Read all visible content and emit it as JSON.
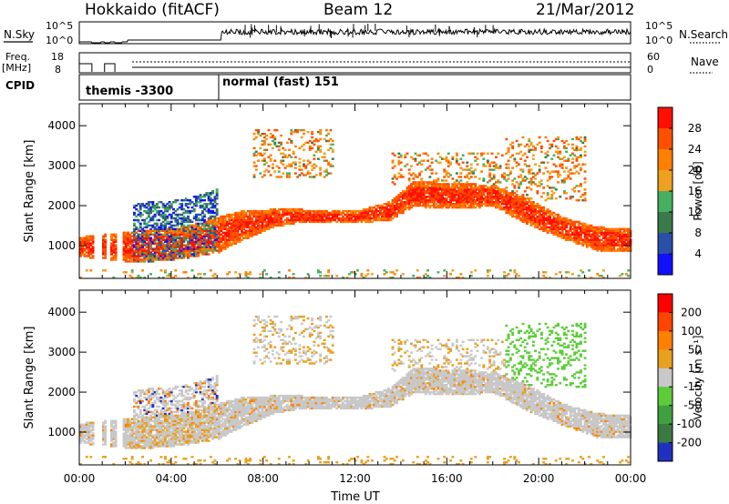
{
  "header": {
    "radar": "Hokkaido (fitACF)",
    "beam": "Beam 12",
    "date": "21/Mar/2012"
  },
  "left_labels": {
    "nsky": "N.Sky",
    "freq": "Freq.",
    "freq_unit": "[MHz]",
    "cpid": "CPID"
  },
  "right_labels": {
    "nsearch": "N.Search",
    "nave": "Nave"
  },
  "cpid_segments": [
    "themis -3300",
    "normal (fast) 151"
  ],
  "strip_ticks": {
    "nsky_left": [
      "10^5",
      "10^0"
    ],
    "nsky_right": [
      "10^5",
      "10^0"
    ],
    "freq_left": [
      "18",
      "8"
    ],
    "freq_right": [
      "60",
      "0"
    ]
  },
  "colors": {
    "power": [
      "#1010ff",
      "#2a4fa8",
      "#3a7a4a",
      "#45b060",
      "#f0a020",
      "#ff8000",
      "#ff5000",
      "#ff1000"
    ],
    "velocity": [
      "#2030c0",
      "#3a7a40",
      "#3fa040",
      "#5ccc3a",
      "#c8c8c8",
      "#e8a020",
      "#ff8000",
      "#ff4400",
      "#ff0000"
    ]
  },
  "chart_data": [
    {
      "type": "heatmap",
      "xlabel": "Time UT",
      "ylabel": "Slant Range [km]",
      "x_ticks": [
        "00:00",
        "04:00",
        "08:00",
        "12:00",
        "16:00",
        "20:00",
        "00:00"
      ],
      "xlim_hours": [
        0,
        24
      ],
      "y_ticks": [
        1000,
        2000,
        3000,
        4000
      ],
      "ylim": [
        180,
        4550
      ],
      "colorbar_label": "Power [dB]",
      "colorbar_ticks": [
        4,
        8,
        12,
        16,
        20,
        24,
        28
      ],
      "colorbar_range": [
        0,
        32
      ],
      "band": {
        "time_hours": [
          0.0,
          2.5,
          4.5,
          6.0,
          7.0,
          8.5,
          9.5,
          10.5,
          12.0,
          13.5,
          14.5,
          16.0,
          18.0,
          19.5,
          21.0,
          22.5,
          24.0
        ],
        "low_km": [
          700,
          550,
          650,
          800,
          1100,
          1450,
          1550,
          1550,
          1550,
          1600,
          1950,
          1900,
          1950,
          1500,
          1150,
          850,
          850
        ],
        "high_km": [
          1200,
          1350,
          1450,
          1700,
          1850,
          1900,
          1900,
          1850,
          1850,
          2100,
          2600,
          2550,
          2500,
          2150,
          1700,
          1450,
          1400
        ]
      },
      "upper_patches": [
        {
          "t0": 7.5,
          "t1": 11.0,
          "r0": 2700,
          "r1": 3900
        },
        {
          "t0": 13.5,
          "t1": 18.5,
          "r0": 2500,
          "r1": 3300
        },
        {
          "t0": 18.5,
          "t1": 22.0,
          "r0": 2100,
          "r1": 3700
        }
      ]
    },
    {
      "type": "heatmap",
      "xlabel": "Time UT",
      "ylabel": "Slant Range [km]",
      "x_ticks": [
        "00:00",
        "04:00",
        "08:00",
        "12:00",
        "16:00",
        "20:00",
        "00:00"
      ],
      "xlim_hours": [
        0,
        24
      ],
      "y_ticks": [
        1000,
        2000,
        3000,
        4000
      ],
      "ylim": [
        180,
        4550
      ],
      "colorbar_label": "Velocity [m s⁻¹]",
      "colorbar_ticks": [
        200,
        100,
        50,
        15,
        -15,
        -50,
        -100,
        -200
      ],
      "colorbar_range": [
        -250,
        250
      ]
    }
  ]
}
